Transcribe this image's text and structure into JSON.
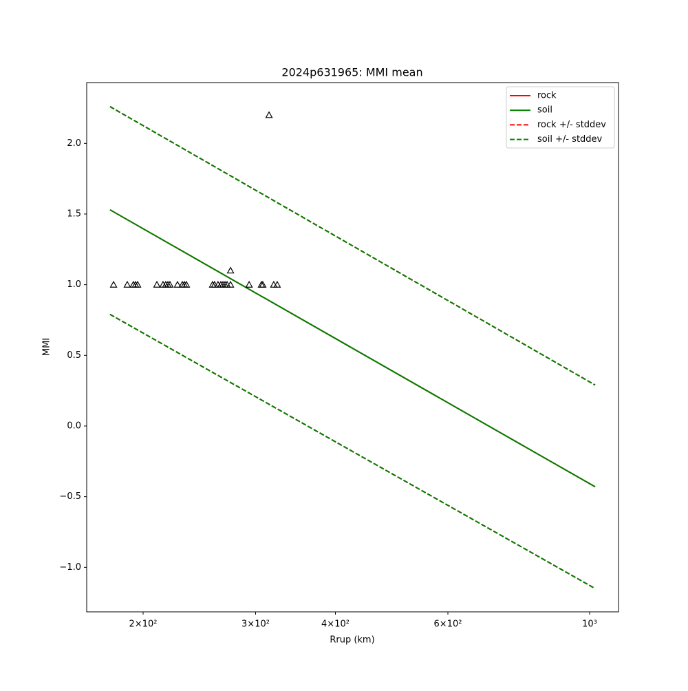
{
  "chart_data": {
    "type": "line",
    "title": "2024p631965: MMI mean",
    "x_label": "Rrup (km)",
    "y_label": "MMI",
    "x_scale": "log",
    "xlim": [
      163.2,
      1109.8
    ],
    "ylim": [
      -1.315,
      2.43
    ],
    "xticks": [
      {
        "value": 200,
        "label": "2×10²"
      },
      {
        "value": 300,
        "label": "3×10²"
      },
      {
        "value": 400,
        "label": "4×10²"
      },
      {
        "value": 600,
        "label": "6×10²"
      },
      {
        "value": 1000,
        "label": "10³"
      }
    ],
    "yticks": [
      {
        "value": -1,
        "label": "−1.0"
      },
      {
        "value": -0.5,
        "label": "−0.5"
      },
      {
        "value": 0,
        "label": "0.0"
      },
      {
        "value": 0.5,
        "label": "0.5"
      },
      {
        "value": 1,
        "label": "1.0"
      },
      {
        "value": 1.5,
        "label": "1.5"
      },
      {
        "value": 2,
        "label": "2.0"
      }
    ],
    "grid": false,
    "legend": "upper right",
    "x": [
      177.5,
      1020
    ],
    "series": [
      {
        "name": "rock",
        "color": "#ff0000",
        "dashed": false,
        "values": [
          1.53,
          -0.43
        ]
      },
      {
        "name": "soil",
        "color": "#008000",
        "dashed": false,
        "values": [
          1.53,
          -0.43
        ]
      },
      {
        "name": "rock +/- stddev",
        "color": "#ff0000",
        "dashed": true,
        "values": [
          2.26,
          0.29
        ],
        "values_lower": [
          0.79,
          -1.15
        ]
      },
      {
        "name": "soil +/- stddev",
        "color": "#008000",
        "dashed": true,
        "values": [
          2.26,
          0.29
        ],
        "values_lower": [
          0.79,
          -1.15
        ]
      }
    ],
    "observations": {
      "color": "#000000",
      "x": [
        179.8,
        188.9,
        193.1,
        194.6,
        196.1,
        210.2,
        214.9,
        217.0,
        218.7,
        220.3,
        226.4,
        230.4,
        232.1,
        233.8,
        256.9,
        258.8,
        262.0,
        264.7,
        266.7,
        268.7,
        270.7,
        274.1,
        293.1,
        306.4,
        307.9,
        320.3,
        324.3,
        274.1,
        314.9
      ],
      "values": [
        1,
        1,
        1,
        1,
        1,
        1,
        1,
        1,
        1,
        1,
        1,
        1,
        1,
        1,
        1,
        1,
        1,
        1,
        1,
        1,
        1,
        1,
        1,
        1,
        1,
        1,
        1,
        1.1,
        2.2
      ]
    }
  }
}
